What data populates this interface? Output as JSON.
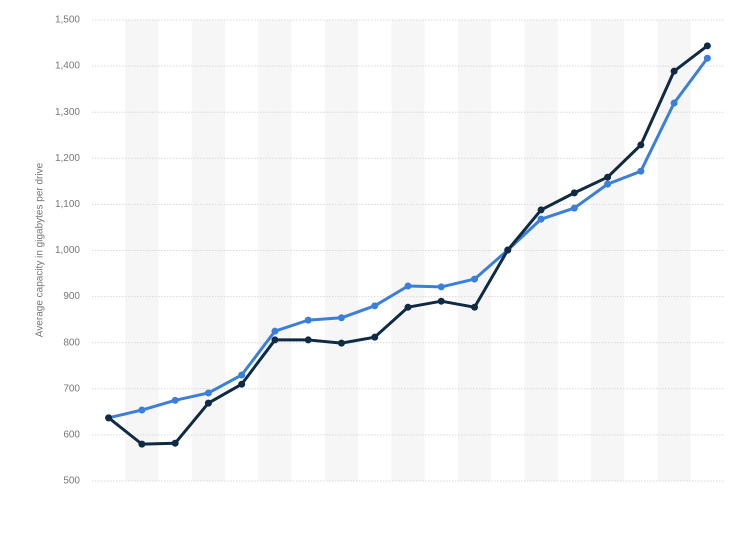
{
  "chart_data": {
    "type": "line",
    "y_label": "Average capacity in gigabytes per drive",
    "categories": [
      null,
      null,
      null,
      null,
      null,
      null,
      null,
      null,
      null,
      null,
      null,
      null,
      null,
      null,
      null,
      null,
      null,
      null,
      null
    ],
    "series": [
      {
        "color": "#3a7fdb",
        "values": [
          637,
          654,
          675,
          691,
          730,
          825,
          849,
          854,
          880,
          923,
          921,
          938,
          1001,
          1068,
          1092,
          1144,
          1172,
          1320,
          1417
        ]
      },
      {
        "color": "#0f2a44",
        "values": [
          637,
          580,
          582,
          669,
          710,
          806,
          806,
          799,
          812,
          877,
          890,
          877,
          1001,
          1088,
          1125,
          1159,
          1229,
          1389,
          1444
        ]
      }
    ],
    "ylim": [
      500,
      1500
    ],
    "yticks": [
      500,
      600,
      700,
      800,
      900,
      {
        "value": 1000,
        "label": "1,000"
      },
      {
        "value": 1100,
        "label": "1,100"
      },
      {
        "value": 1200,
        "label": "1,200"
      },
      {
        "value": 1300,
        "label": "1,300"
      },
      {
        "value": 1400,
        "label": "1,400"
      },
      {
        "value": 1500,
        "label": "1,500"
      }
    ],
    "grid": true,
    "band_color": "#f6f6f6"
  }
}
